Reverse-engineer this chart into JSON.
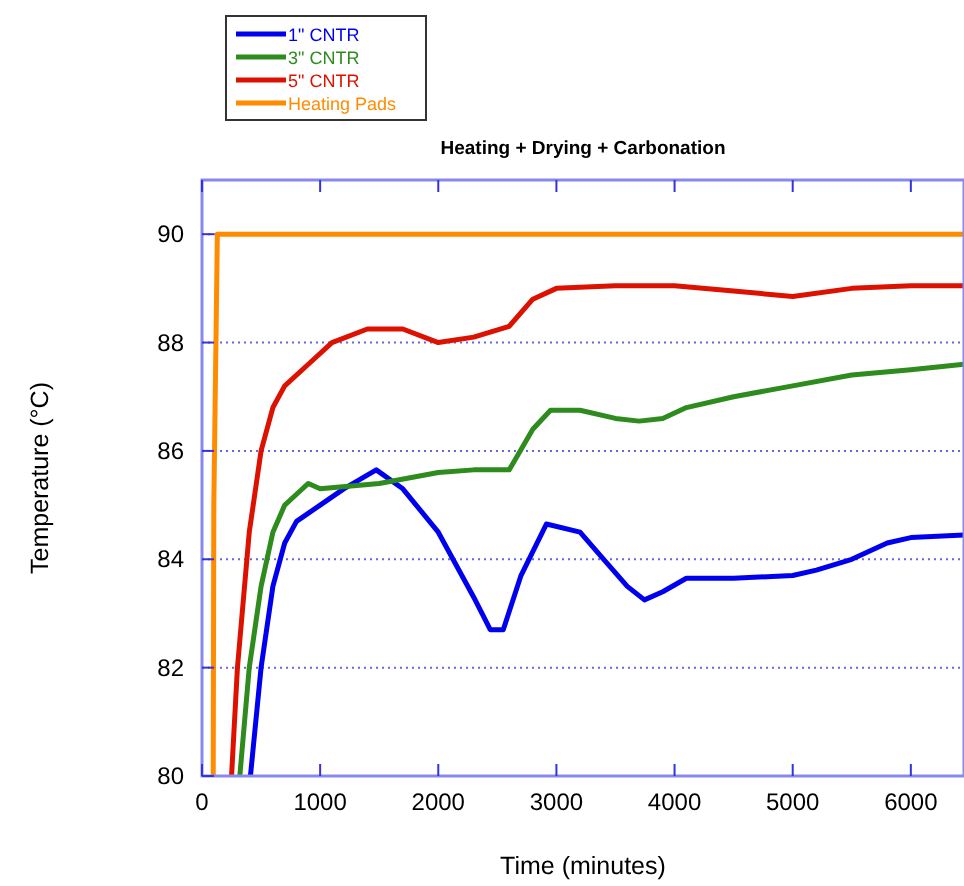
{
  "chart_data": {
    "type": "line",
    "title": "Heating + Drying + Carbonation",
    "xlabel": "Time (minutes)",
    "ylabel": "Temperature (°C)",
    "xlim": [
      0,
      6450
    ],
    "xticks": [
      0,
      1000,
      2000,
      3000,
      4000,
      5000,
      6000
    ],
    "ylim": [
      80,
      91
    ],
    "yticks": [
      80,
      82,
      84,
      86,
      88,
      90
    ],
    "grid": "y",
    "legend": "top left",
    "marker": "none",
    "line_style": "solid",
    "series": [
      {
        "name": "1\" CNTR",
        "color": "#0000ee",
        "x": [
          410,
          500,
          600,
          700,
          800,
          1000,
          1200,
          1475,
          1700,
          2000,
          2300,
          2440,
          2550,
          2700,
          2915,
          3200,
          3400,
          3600,
          3745,
          3900,
          4100,
          4500,
          5000,
          5200,
          5500,
          5800,
          6000,
          6450
        ],
        "values": [
          80,
          82,
          83.5,
          84.3,
          84.7,
          85,
          85.3,
          85.65,
          85.3,
          84.5,
          83.3,
          82.7,
          82.7,
          83.7,
          84.65,
          84.5,
          84,
          83.5,
          83.25,
          83.4,
          83.65,
          83.65,
          83.7,
          83.8,
          84,
          84.3,
          84.4,
          84.45
        ]
      },
      {
        "name": "3\" CNTR",
        "color": "#2e8b1e",
        "x": [
          320,
          400,
          500,
          600,
          700,
          800,
          900,
          1000,
          1500,
          2000,
          2300,
          2600,
          2800,
          2950,
          3200,
          3500,
          3700,
          3900,
          4100,
          4500,
          5000,
          5500,
          6000,
          6450
        ],
        "values": [
          80,
          82,
          83.5,
          84.5,
          85,
          85.2,
          85.4,
          85.3,
          85.4,
          85.6,
          85.65,
          85.65,
          86.4,
          86.75,
          86.75,
          86.6,
          86.55,
          86.6,
          86.8,
          87,
          87.2,
          87.4,
          87.5,
          87.6
        ]
      },
      {
        "name": "5\" CNTR",
        "color": "#dd1100",
        "x": [
          250,
          300,
          400,
          500,
          600,
          700,
          900,
          1100,
          1400,
          1700,
          2000,
          2300,
          2600,
          2800,
          3000,
          3500,
          4000,
          4500,
          5000,
          5500,
          6000,
          6450
        ],
        "values": [
          80,
          82,
          84.5,
          86,
          86.8,
          87.2,
          87.6,
          88,
          88.25,
          88.25,
          88,
          88.1,
          88.3,
          88.8,
          89,
          89.05,
          89.05,
          88.95,
          88.85,
          89,
          89.05,
          89.05
        ]
      },
      {
        "name": "Heating Pads",
        "color": "#ff8c00",
        "x": [
          95,
          100,
          130,
          6450
        ],
        "values": [
          80,
          85,
          90,
          90
        ]
      }
    ]
  }
}
